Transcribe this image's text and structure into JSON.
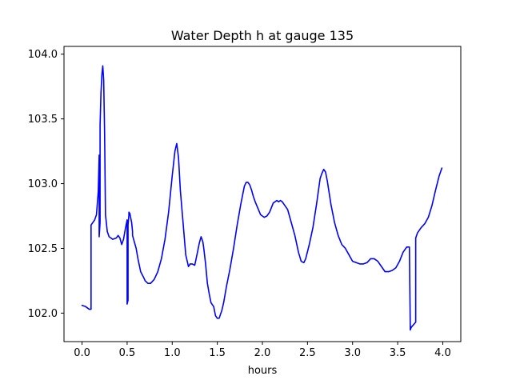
{
  "chart_data": {
    "type": "line",
    "title": "Water Depth h at gauge 135",
    "xlabel": "hours",
    "ylabel": "",
    "xlim": [
      -0.2,
      4.2
    ],
    "ylim": [
      101.78,
      104.06
    ],
    "xticks": [
      0.0,
      0.5,
      1.0,
      1.5,
      2.0,
      2.5,
      3.0,
      3.5,
      4.0
    ],
    "xtick_labels": [
      "0.0",
      "0.5",
      "1.0",
      "1.5",
      "2.0",
      "2.5",
      "3.0",
      "3.5",
      "4.0"
    ],
    "yticks": [
      102.0,
      102.5,
      103.0,
      103.5,
      104.0
    ],
    "ytick_labels": [
      "102.0",
      "102.5",
      "103.0",
      "103.5",
      "104.0"
    ],
    "grid": false,
    "series": [
      {
        "color": "#0000ff",
        "x": [
          0.0,
          0.04,
          0.08,
          0.1,
          0.1,
          0.14,
          0.16,
          0.18,
          0.19,
          0.19,
          0.2,
          0.2,
          0.21,
          0.22,
          0.23,
          0.24,
          0.25,
          0.26,
          0.28,
          0.3,
          0.34,
          0.38,
          0.4,
          0.42,
          0.44,
          0.46,
          0.48,
          0.5,
          0.5,
          0.51,
          0.51,
          0.52,
          0.52,
          0.53,
          0.55,
          0.56,
          0.56,
          0.58,
          0.6,
          0.62,
          0.65,
          0.68,
          0.7,
          0.73,
          0.76,
          0.8,
          0.84,
          0.88,
          0.92,
          0.96,
          1.0,
          1.03,
          1.05,
          1.07,
          1.09,
          1.12,
          1.15,
          1.18,
          1.2,
          1.22,
          1.25,
          1.28,
          1.3,
          1.32,
          1.34,
          1.35,
          1.37,
          1.39,
          1.41,
          1.43,
          1.46,
          1.48,
          1.5,
          1.52,
          1.55,
          1.57,
          1.6,
          1.64,
          1.68,
          1.72,
          1.76,
          1.8,
          1.82,
          1.84,
          1.86,
          1.88,
          1.9,
          1.92,
          1.95,
          1.98,
          2.0,
          2.02,
          2.05,
          2.08,
          2.12,
          2.16,
          2.18,
          2.2,
          2.22,
          2.24,
          2.28,
          2.32,
          2.36,
          2.4,
          2.43,
          2.46,
          2.48,
          2.52,
          2.56,
          2.6,
          2.64,
          2.66,
          2.68,
          2.7,
          2.72,
          2.74,
          2.76,
          2.8,
          2.84,
          2.88,
          2.92,
          2.96,
          3.0,
          3.04,
          3.08,
          3.12,
          3.16,
          3.2,
          3.24,
          3.28,
          3.32,
          3.36,
          3.4,
          3.44,
          3.48,
          3.52,
          3.56,
          3.6,
          3.63,
          3.64,
          3.65,
          3.7,
          3.7,
          3.72,
          3.76,
          3.8,
          3.84,
          3.88,
          3.92,
          3.96,
          3.99
        ],
        "y": [
          102.06,
          102.05,
          102.03,
          102.03,
          102.68,
          102.72,
          102.76,
          102.94,
          103.22,
          102.59,
          102.7,
          103.45,
          103.7,
          103.84,
          103.91,
          103.8,
          103.4,
          102.76,
          102.63,
          102.59,
          102.57,
          102.58,
          102.6,
          102.58,
          102.53,
          102.57,
          102.65,
          102.72,
          102.07,
          102.1,
          102.68,
          102.76,
          102.78,
          102.77,
          102.7,
          102.63,
          102.6,
          102.55,
          102.5,
          102.42,
          102.32,
          102.28,
          102.25,
          102.23,
          102.23,
          102.26,
          102.32,
          102.42,
          102.57,
          102.78,
          103.06,
          103.25,
          103.31,
          103.2,
          102.95,
          102.7,
          102.45,
          102.36,
          102.38,
          102.38,
          102.37,
          102.47,
          102.54,
          102.59,
          102.55,
          102.5,
          102.38,
          102.23,
          102.15,
          102.08,
          102.05,
          101.98,
          101.96,
          101.96,
          102.02,
          102.08,
          102.2,
          102.34,
          102.5,
          102.68,
          102.84,
          102.98,
          103.01,
          103.01,
          102.99,
          102.95,
          102.9,
          102.86,
          102.81,
          102.76,
          102.75,
          102.74,
          102.75,
          102.78,
          102.85,
          102.87,
          102.86,
          102.87,
          102.86,
          102.84,
          102.8,
          102.7,
          102.6,
          102.47,
          102.4,
          102.39,
          102.42,
          102.53,
          102.66,
          102.84,
          103.04,
          103.08,
          103.11,
          103.09,
          103.02,
          102.93,
          102.84,
          102.7,
          102.6,
          102.53,
          102.5,
          102.45,
          102.4,
          102.39,
          102.38,
          102.38,
          102.39,
          102.42,
          102.42,
          102.4,
          102.36,
          102.32,
          102.32,
          102.33,
          102.35,
          102.4,
          102.47,
          102.51,
          102.51,
          101.87,
          101.89,
          101.93,
          102.58,
          102.62,
          102.66,
          102.69,
          102.74,
          102.83,
          102.95,
          103.06,
          103.12
        ]
      }
    ]
  }
}
